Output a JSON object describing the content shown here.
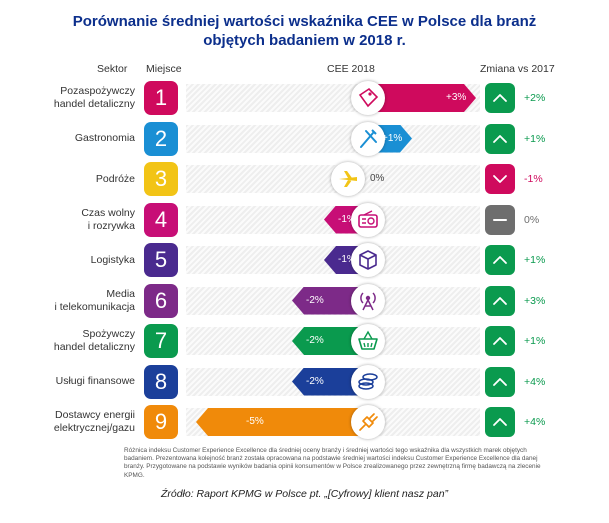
{
  "title_line1": "Porównanie średniej wartości wskaźnika CEE w Polsce dla branż",
  "title_line2": "objętych badaniem w 2018 r.",
  "headers": {
    "sektor": "Sektor",
    "miejsce": "Miejsce",
    "cee": "CEE 2018",
    "zmiana": "Zmiana vs 2017"
  },
  "colors": {
    "up": "#0a9a4e",
    "down": "#cf0a5d",
    "flat": "#6e6e6e"
  },
  "chart_data": {
    "type": "bar",
    "title": "Porównanie średniej wartości wskaźnika CEE w Polsce dla branż objętych badaniem w 2018 r.",
    "xlim": [
      -5,
      3
    ],
    "rows": [
      {
        "sector": "Pozaspożywczy\nhandel detaliczny",
        "rank": "1",
        "cee": 3,
        "cee_label": "+3%",
        "change": 2,
        "change_label": "+2%",
        "color": "#cf0a5d",
        "icon": "price-tag-icon"
      },
      {
        "sector": "Gastronomia",
        "rank": "2",
        "cee": 1,
        "cee_label": "+1%",
        "change": 1,
        "change_label": "+1%",
        "color": "#1a8fd4",
        "icon": "fork-knife-icon"
      },
      {
        "sector": "Podróże",
        "rank": "3",
        "cee": 0,
        "cee_label": "0%",
        "change": -1,
        "change_label": "-1%",
        "color": "#f2c416",
        "icon": "airplane-icon"
      },
      {
        "sector": "Czas wolny\ni rozrywka",
        "rank": "4",
        "cee": -1,
        "cee_label": "-1%",
        "change": 0,
        "change_label": "0%",
        "color": "#c70e76",
        "icon": "radio-icon"
      },
      {
        "sector": "Logistyka",
        "rank": "5",
        "cee": -1,
        "cee_label": "-1%",
        "change": 1,
        "change_label": "+1%",
        "color": "#4a2a8f",
        "icon": "package-icon"
      },
      {
        "sector": "Media\ni telekomunikacja",
        "rank": "6",
        "cee": -2,
        "cee_label": "-2%",
        "change": 3,
        "change_label": "+3%",
        "color": "#7d2a88",
        "icon": "antenna-icon"
      },
      {
        "sector": "Spożywczy\nhandel detaliczny",
        "rank": "7",
        "cee": -2,
        "cee_label": "-2%",
        "change": 1,
        "change_label": "+1%",
        "color": "#0a9a4e",
        "icon": "basket-icon"
      },
      {
        "sector": "Usługi finansowe",
        "rank": "8",
        "cee": -2,
        "cee_label": "-2%",
        "change": 4,
        "change_label": "+4%",
        "color": "#1b3f9a",
        "icon": "coins-icon"
      },
      {
        "sector": "Dostawcy energii\nelektrycznej/gazu",
        "rank": "9",
        "cee": -5,
        "cee_label": "-5%",
        "change": 4,
        "change_label": "+4%",
        "color": "#f08a0a",
        "icon": "plug-icon"
      }
    ]
  },
  "note": "Różnica indeksu Customer Experience Excellence dla średniej oceny branży i średniej wartości tego wskaźnika dla wszystkich marek objętych badaniem. Prezentowana kolejność branż została opracowana na podstawie średniej wartości indeksu Customer Experience Excellence dla danej branży. Przygotowane na podstawie wyników badania opinii konsumentów w Polsce zrealizowanego przez zewnętrzną firmę badawczą na zlecenie KPMG.",
  "source": "Źródło: Raport KPMG w Polsce pt. „[Cyfrowy] klient nasz pan”"
}
